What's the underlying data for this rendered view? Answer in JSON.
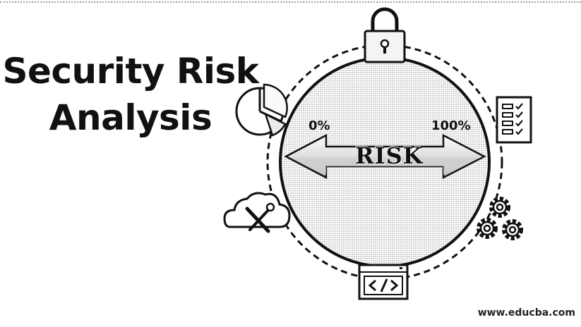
{
  "title": {
    "line1": "Security Risk",
    "line2": "Analysis"
  },
  "gauge": {
    "left_label": "0%",
    "right_label": "100%",
    "center_label": "RISK"
  },
  "icons": [
    "lock-icon",
    "pie-chart-icon",
    "checklist-icon",
    "cloud-tools-icon",
    "gears-icon",
    "code-icon"
  ],
  "watermark": "www.educba.com"
}
